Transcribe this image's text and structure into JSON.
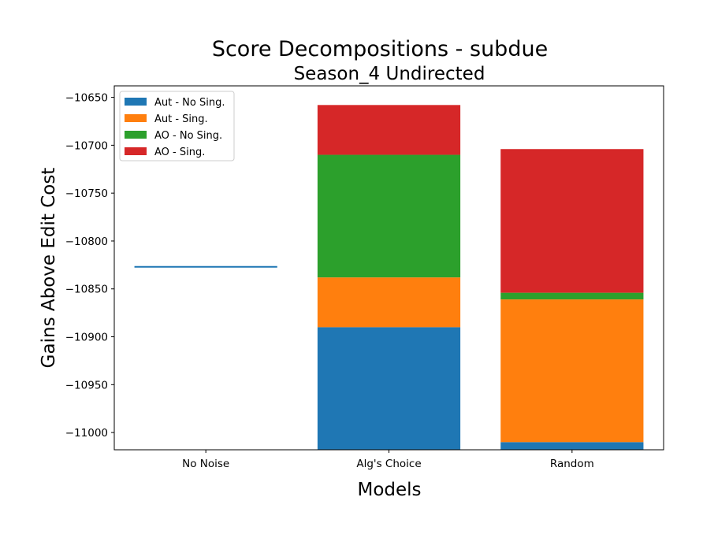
{
  "chart_data": {
    "type": "bar",
    "title": "Score Decompositions - subdue",
    "subtitle": "Season_4 Undirected",
    "xlabel": "Models",
    "ylabel": "Gains Above Edit Cost",
    "categories": [
      "No Noise",
      "Alg's Choice",
      "Random"
    ],
    "ylim": [
      -11018,
      -10638
    ],
    "yticks": [
      -11000,
      -10950,
      -10900,
      -10850,
      -10800,
      -10750,
      -10700,
      -10650
    ],
    "ytick_labels": [
      "−11000",
      "−10950",
      "−10900",
      "−10850",
      "−10800",
      "−10750",
      "−10700",
      "−10650"
    ],
    "baseline": {
      "category": "No Noise",
      "value": -10827,
      "color": "#1f77b4"
    },
    "series": [
      {
        "name": "Aut - No Sing.",
        "color": "#1f77b4",
        "segments": [
          null,
          [
            -11018,
            -10890
          ],
          [
            -11018,
            -11010
          ]
        ]
      },
      {
        "name": "Aut - Sing.",
        "color": "#ff7f0e",
        "segments": [
          null,
          [
            -10890,
            -10838
          ],
          [
            -11010,
            -10861
          ]
        ]
      },
      {
        "name": "AO - No Sing.",
        "color": "#2ca02c",
        "segments": [
          null,
          [
            -10838,
            -10710
          ],
          [
            -10861,
            -10854
          ]
        ]
      },
      {
        "name": "AO - Sing.",
        "color": "#d62728",
        "segments": [
          null,
          [
            -10710,
            -10658
          ],
          [
            -10854,
            -10704
          ]
        ]
      }
    ],
    "legend": "top-left",
    "grid": false
  }
}
